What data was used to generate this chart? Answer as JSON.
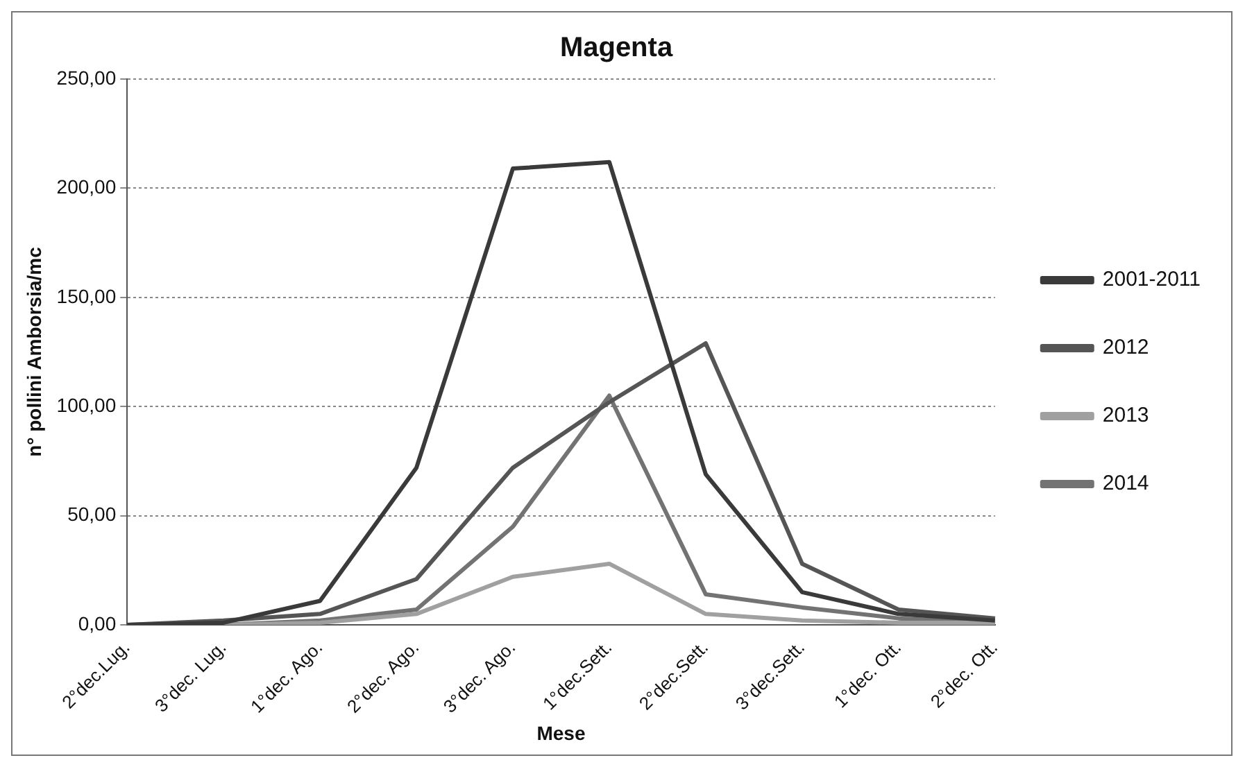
{
  "chart_data": {
    "type": "line",
    "title": "Magenta",
    "xlabel": "Mese",
    "ylabel": "n° pollini Amborsia/mc",
    "categories": [
      "2°dec.Lug.",
      "3°dec. Lug.",
      "1°dec. Ago.",
      "2°dec. Ago.",
      "3°dec. Ago.",
      "1°dec.Sett.",
      "2°dec.Sett.",
      "3°dec.Sett.",
      "1°dec. Ott.",
      "2°dec. Ott."
    ],
    "series": [
      {
        "name": "2001-2011",
        "color": "#3a3a3a",
        "values": [
          0,
          1,
          11,
          72,
          209,
          212,
          69,
          15,
          5,
          2
        ]
      },
      {
        "name": "2012",
        "color": "#555555",
        "values": [
          0,
          2,
          5,
          21,
          72,
          102,
          129,
          28,
          7,
          3
        ]
      },
      {
        "name": "2013",
        "color": "#a0a0a0",
        "values": [
          0,
          0,
          1,
          5,
          22,
          28,
          5,
          2,
          1,
          1
        ]
      },
      {
        "name": "2014",
        "color": "#737373",
        "values": [
          0,
          0,
          2,
          7,
          45,
          105,
          14,
          8,
          3,
          1
        ]
      }
    ],
    "ylim": [
      0,
      250
    ],
    "yticks": [
      {
        "value": 0,
        "label": "0,00"
      },
      {
        "value": 50,
        "label": "50,00"
      },
      {
        "value": 100,
        "label": "100,00"
      },
      {
        "value": 150,
        "label": "150,00"
      },
      {
        "value": 200,
        "label": "200,00"
      },
      {
        "value": 250,
        "label": "250,00"
      }
    ],
    "grid": "y",
    "legend": "right",
    "marker": "none",
    "line_style": "solid"
  }
}
